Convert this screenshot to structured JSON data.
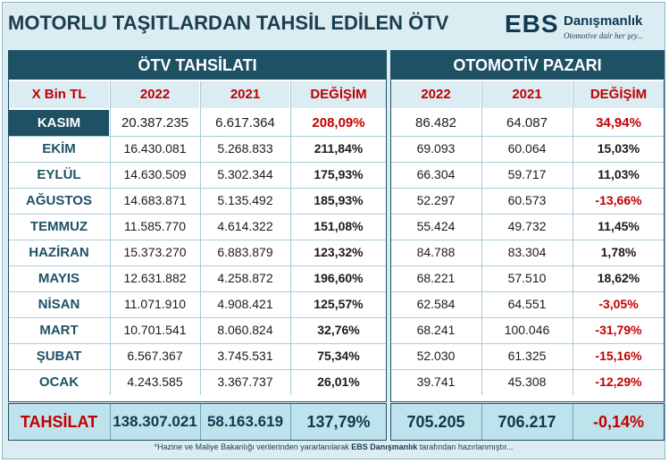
{
  "title": "MOTORLU TAŞITLARDAN TAHSİL EDİLEN ÖTV",
  "logo": {
    "brand": "EBS",
    "name": "Danışmanlık",
    "tagline": "Otomotive dair her şey..."
  },
  "sections": {
    "left": "ÖTV TAHSİLATI",
    "right": "OTOMOTİV PAZARI"
  },
  "headers": {
    "label": "X Bin TL",
    "left": [
      "2022",
      "2021",
      "DEĞİŞİM"
    ],
    "right": [
      "2022",
      "2021",
      "DEĞİŞİM"
    ]
  },
  "rows": [
    {
      "month": "KASIM",
      "otv_2022": "20.387.235",
      "otv_2021": "6.617.364",
      "otv_change": "208,09%",
      "pazar_2022": "86.482",
      "pazar_2021": "64.087",
      "pazar_change": "34,94%",
      "highlight": true
    },
    {
      "month": "EKİM",
      "otv_2022": "16.430.081",
      "otv_2021": "5.268.833",
      "otv_change": "211,84%",
      "pazar_2022": "69.093",
      "pazar_2021": "60.064",
      "pazar_change": "15,03%"
    },
    {
      "month": "EYLÜL",
      "otv_2022": "14.630.509",
      "otv_2021": "5.302.344",
      "otv_change": "175,93%",
      "pazar_2022": "66.304",
      "pazar_2021": "59.717",
      "pazar_change": "11,03%"
    },
    {
      "month": "AĞUSTOS",
      "otv_2022": "14.683.871",
      "otv_2021": "5.135.492",
      "otv_change": "185,93%",
      "pazar_2022": "52.297",
      "pazar_2021": "60.573",
      "pazar_change": "-13,66%"
    },
    {
      "month": "TEMMUZ",
      "otv_2022": "11.585.770",
      "otv_2021": "4.614.322",
      "otv_change": "151,08%",
      "pazar_2022": "55.424",
      "pazar_2021": "49.732",
      "pazar_change": "11,45%"
    },
    {
      "month": "HAZİRAN",
      "otv_2022": "15.373.270",
      "otv_2021": "6.883.879",
      "otv_change": "123,32%",
      "pazar_2022": "84.788",
      "pazar_2021": "83.304",
      "pazar_change": "1,78%"
    },
    {
      "month": "MAYIS",
      "otv_2022": "12.631.882",
      "otv_2021": "4.258.872",
      "otv_change": "196,60%",
      "pazar_2022": "68.221",
      "pazar_2021": "57.510",
      "pazar_change": "18,62%"
    },
    {
      "month": "NİSAN",
      "otv_2022": "11.071.910",
      "otv_2021": "4.908.421",
      "otv_change": "125,57%",
      "pazar_2022": "62.584",
      "pazar_2021": "64.551",
      "pazar_change": "-3,05%"
    },
    {
      "month": "MART",
      "otv_2022": "10.701.541",
      "otv_2021": "8.060.824",
      "otv_change": "32,76%",
      "pazar_2022": "68.241",
      "pazar_2021": "100.046",
      "pazar_change": "-31,79%"
    },
    {
      "month": "ŞUBAT",
      "otv_2022": "6.567.367",
      "otv_2021": "3.745.531",
      "otv_change": "75,34%",
      "pazar_2022": "52.030",
      "pazar_2021": "61.325",
      "pazar_change": "-15,16%"
    },
    {
      "month": "OCAK",
      "otv_2022": "4.243.585",
      "otv_2021": "3.367.737",
      "otv_change": "26,01%",
      "pazar_2022": "39.741",
      "pazar_2021": "45.308",
      "pazar_change": "-12,29%"
    }
  ],
  "total": {
    "label": "TAHSİLAT",
    "otv_2022": "138.307.021",
    "otv_2021": "58.163.619",
    "otv_change": "137,79%",
    "pazar_2022": "705.205",
    "pazar_2021": "706.217",
    "pazar_change": "-0,14%"
  },
  "footer": {
    "pre": "*Hazine ve Maliye Bakanlığı verilerinden yararlanılarak ",
    "brand": "EBS Danışmanlık",
    "post": " tarafından hazırlanmıştır..."
  },
  "colors": {
    "header_bg": "#1f5165",
    "accent_red": "#c00000",
    "panel_bg": "#dbedf2",
    "total_bg": "#bfe3ed"
  }
}
